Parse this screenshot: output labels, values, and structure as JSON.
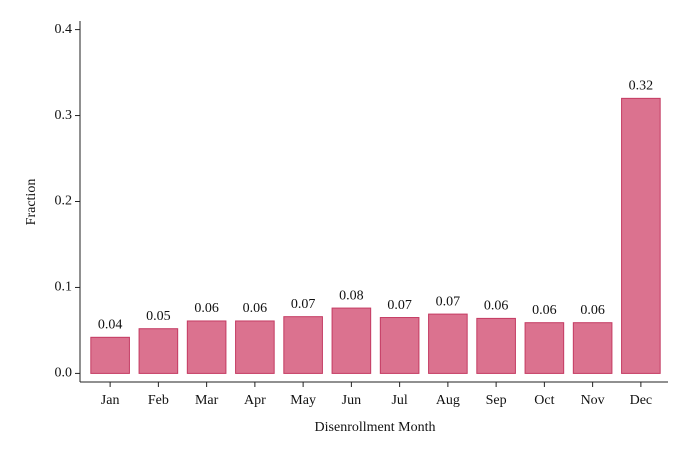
{
  "chart_data": {
    "type": "bar",
    "x_label": "Disenrollment Month",
    "y_label": "Fraction",
    "categories": [
      "Jan",
      "Feb",
      "Mar",
      "Apr",
      "May",
      "Jun",
      "Jul",
      "Aug",
      "Sep",
      "Oct",
      "Nov",
      "Dec"
    ],
    "values": [
      0.042,
      0.052,
      0.061,
      0.061,
      0.066,
      0.076,
      0.065,
      0.069,
      0.064,
      0.059,
      0.059,
      0.32
    ],
    "value_labels": [
      "0.04",
      "0.05",
      "0.06",
      "0.06",
      "0.07",
      "0.08",
      "0.07",
      "0.07",
      "0.06",
      "0.06",
      "0.06",
      "0.32"
    ],
    "color": "#db728f",
    "edge_color": "#c43a62",
    "ylim": [
      -0.01,
      0.41
    ],
    "yticks": [
      {
        "value": 0,
        "label": "0.0"
      },
      0.1,
      0.2,
      0.3,
      0.4
    ]
  }
}
